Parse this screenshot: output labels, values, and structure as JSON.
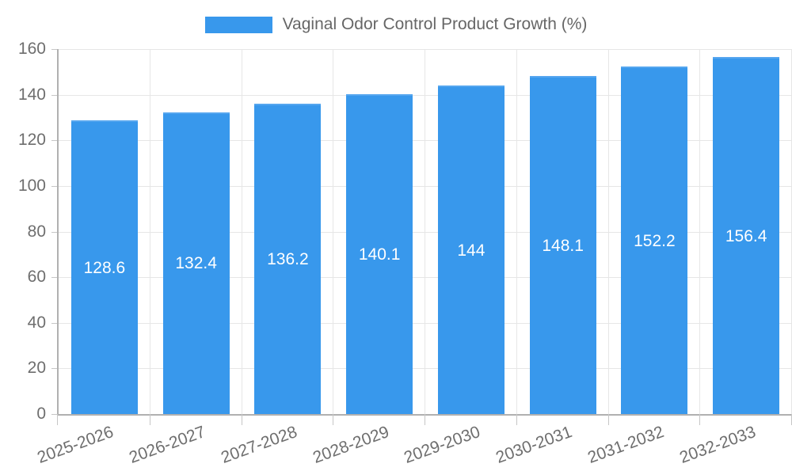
{
  "chart_data": {
    "type": "bar",
    "title": "Vaginal Odor Control Product Growth (%)",
    "legend_position": "top",
    "categories": [
      "2025-2026",
      "2026-2027",
      "2027-2028",
      "2028-2029",
      "2029-2030",
      "2030-2031",
      "2031-2032",
      "2032-2033"
    ],
    "series": [
      {
        "name": "Vaginal Odor Control Product Growth (%)",
        "values": [
          128.6,
          132.4,
          136.2,
          140.1,
          144,
          148.1,
          152.2,
          156.4
        ],
        "value_labels": [
          "128.6",
          "132.4",
          "136.2",
          "140.1",
          "144",
          "148.1",
          "152.2",
          "156.4"
        ]
      }
    ],
    "xlabel": "",
    "ylabel": "",
    "ylim": [
      0,
      160
    ],
    "yticks": [
      0,
      20,
      40,
      60,
      80,
      100,
      120,
      140,
      160
    ],
    "grid": true,
    "colors": {
      "bar": "#3898EC",
      "bar_top_edge": "#55A6EF",
      "value_label": "#FFFFFF",
      "legend_text": "#666666",
      "axis_text": "#6E6E6E",
      "grid_line": "#E6E6E6",
      "tick_line": "#C6C6C6",
      "axis_line": "#B0B0B0",
      "background": "#FFFFFF"
    }
  }
}
